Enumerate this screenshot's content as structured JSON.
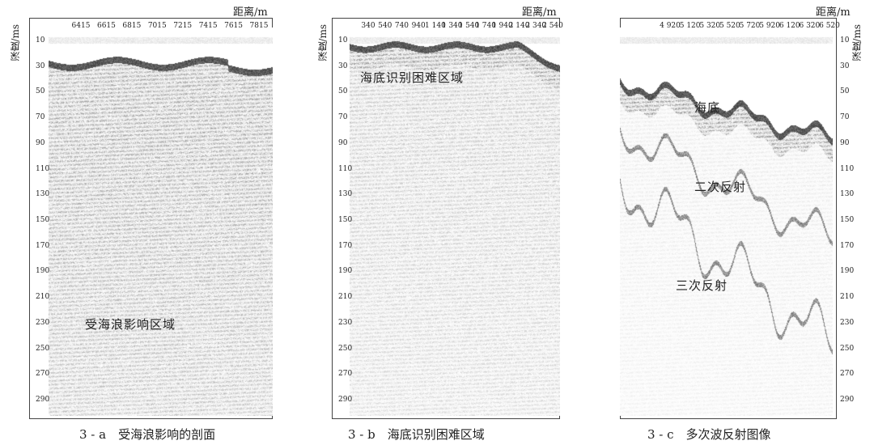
{
  "x_axis_label": "距离/m",
  "y_axis_label": "深度/ms",
  "y_ticks": [
    10,
    30,
    50,
    70,
    90,
    110,
    130,
    150,
    170,
    190,
    210,
    230,
    250,
    270,
    290
  ],
  "panels": [
    {
      "id": "a",
      "x_ticks": [
        "6415",
        "6615",
        "6815",
        "7015",
        "7215",
        "7415",
        "7615",
        "7815"
      ],
      "annotations": [
        "受海浪影响区域"
      ],
      "caption": "3 - a　受海浪影响的剖面"
    },
    {
      "id": "b",
      "x_ticks": [
        "340",
        "540",
        "740",
        "940",
        "1 140",
        "1 340",
        "1 540",
        "1 740",
        "1 940",
        "2 140",
        "2 340",
        "2 540"
      ],
      "annotations": [
        "海底识别困难区域"
      ],
      "caption": "3 - b　海底识别困难区域"
    },
    {
      "id": "c",
      "x_ticks": [
        "4 920",
        "5 120",
        "5 320",
        "5 520",
        "5 720",
        "5 920",
        "6 120",
        "6 320",
        "6 520"
      ],
      "annotations": [
        "海底",
        "二次反射",
        "三次反射"
      ],
      "caption": "3 - c　多次波反射图像"
    }
  ]
}
